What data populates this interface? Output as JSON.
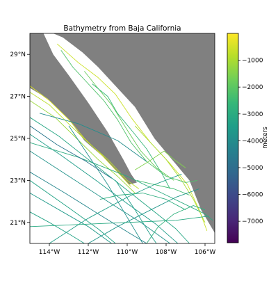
{
  "chart_data": {
    "type": "heatmap",
    "title": "Bathymetry from Baja California",
    "colorbar_label": "meters",
    "colormap": "viridis",
    "viridis_stops": [
      "#440154",
      "#482878",
      "#3e4989",
      "#31688e",
      "#26828e",
      "#1f9e89",
      "#35b779",
      "#6ece58",
      "#b5de2b",
      "#fde725"
    ],
    "land_color": "#808080",
    "ocean_color": "#ffffff",
    "value_range": [
      -7800,
      0
    ],
    "colorbar_ticks": [
      {
        "value": -1000,
        "label": "−1000"
      },
      {
        "value": -2000,
        "label": "−2000"
      },
      {
        "value": -3000,
        "label": "−3000"
      },
      {
        "value": -4000,
        "label": "−4000"
      },
      {
        "value": -5000,
        "label": "−5000"
      },
      {
        "value": -6000,
        "label": "−6000"
      },
      {
        "value": -7000,
        "label": "−7000"
      }
    ],
    "lon_range": [
      -115.0,
      -105.5
    ],
    "lat_range": [
      20.0,
      30.0
    ],
    "x_ticks": [
      {
        "value": -114,
        "label": "114°W"
      },
      {
        "value": -112,
        "label": "112°W"
      },
      {
        "value": -110,
        "label": "110°W"
      },
      {
        "value": -108,
        "label": "108°W"
      },
      {
        "value": -106,
        "label": "106°W"
      }
    ],
    "y_ticks": [
      {
        "value": 21,
        "label": "21°N"
      },
      {
        "value": 23,
        "label": "23°N"
      },
      {
        "value": 25,
        "label": "25°N"
      },
      {
        "value": 27,
        "label": "27°N"
      },
      {
        "value": 29,
        "label": "29°N"
      }
    ],
    "land_polygons": [
      {
        "name": "mainland-mexico",
        "points": [
          [
            -113.8,
            30.0
          ],
          [
            -105.5,
            30.0
          ],
          [
            -105.5,
            20.5
          ],
          [
            -106.2,
            21.6
          ],
          [
            -106.8,
            23.0
          ],
          [
            -107.7,
            24.0
          ],
          [
            -108.6,
            25.0
          ],
          [
            -109.6,
            26.5
          ],
          [
            -110.7,
            27.6
          ],
          [
            -111.5,
            28.4
          ],
          [
            -112.3,
            29.1
          ],
          [
            -113.3,
            29.8
          ]
        ]
      },
      {
        "name": "baja-peninsula",
        "points": [
          [
            -115.0,
            30.0
          ],
          [
            -114.3,
            30.0
          ],
          [
            -113.8,
            29.0
          ],
          [
            -113.0,
            28.0
          ],
          [
            -112.0,
            26.7
          ],
          [
            -111.0,
            25.3
          ],
          [
            -110.2,
            24.0
          ],
          [
            -109.8,
            23.3
          ],
          [
            -109.5,
            22.9
          ],
          [
            -109.9,
            22.8
          ],
          [
            -110.3,
            23.2
          ],
          [
            -111.2,
            24.1
          ],
          [
            -112.2,
            24.9
          ],
          [
            -113.0,
            25.9
          ],
          [
            -114.1,
            26.9
          ],
          [
            -115.0,
            27.4
          ]
        ]
      }
    ],
    "survey_tracks": [
      {
        "depth": -400,
        "points": [
          [
            -115.0,
            27.5
          ],
          [
            -114.0,
            26.8
          ],
          [
            -113.0,
            25.9
          ],
          [
            -112.2,
            25.0
          ],
          [
            -111.3,
            24.2
          ],
          [
            -110.4,
            23.3
          ],
          [
            -109.8,
            22.7
          ]
        ]
      },
      {
        "depth": -800,
        "points": [
          [
            -115.0,
            27.2
          ],
          [
            -114.0,
            26.6
          ],
          [
            -112.9,
            25.6
          ],
          [
            -112.0,
            24.8
          ],
          [
            -111.0,
            24.0
          ],
          [
            -110.0,
            23.0
          ],
          [
            -109.4,
            22.6
          ]
        ]
      },
      {
        "depth": -1200,
        "points": [
          [
            -115.0,
            26.8
          ],
          [
            -113.7,
            26.0
          ],
          [
            -112.6,
            25.0
          ],
          [
            -111.5,
            24.0
          ],
          [
            -110.5,
            23.2
          ],
          [
            -109.6,
            22.4
          ]
        ]
      },
      {
        "depth": -600,
        "points": [
          [
            -113.6,
            29.5
          ],
          [
            -112.5,
            28.6
          ],
          [
            -111.5,
            27.9
          ],
          [
            -110.6,
            27.1
          ],
          [
            -109.8,
            26.0
          ],
          [
            -108.8,
            24.8
          ],
          [
            -107.8,
            23.8
          ],
          [
            -106.9,
            22.8
          ],
          [
            -106.3,
            21.6
          ],
          [
            -105.9,
            20.6
          ]
        ]
      },
      {
        "depth": -1000,
        "points": [
          [
            -109.6,
            25.6
          ],
          [
            -108.9,
            24.9
          ],
          [
            -108.0,
            24.0
          ],
          [
            -107.2,
            23.0
          ],
          [
            -106.6,
            22.1
          ],
          [
            -106.0,
            21.0
          ]
        ]
      },
      {
        "depth": -2200,
        "points": [
          [
            -113.4,
            29.2
          ],
          [
            -112.8,
            28.4
          ],
          [
            -112.0,
            27.6
          ],
          [
            -111.2,
            26.8
          ],
          [
            -110.5,
            25.9
          ],
          [
            -109.8,
            24.8
          ],
          [
            -109.0,
            23.9
          ],
          [
            -108.0,
            23.2
          ],
          [
            -107.0,
            22.9
          ],
          [
            -106.4,
            23.0
          ]
        ]
      },
      {
        "depth": -1800,
        "points": [
          [
            -112.2,
            28.2
          ],
          [
            -111.6,
            27.5
          ],
          [
            -110.8,
            26.6
          ],
          [
            -110.0,
            25.4
          ],
          [
            -109.3,
            24.4
          ],
          [
            -108.5,
            23.6
          ],
          [
            -107.6,
            23.0
          ]
        ]
      },
      {
        "depth": -2600,
        "points": [
          [
            -111.8,
            27.6
          ],
          [
            -111.0,
            27.0
          ],
          [
            -110.5,
            26.2
          ],
          [
            -109.7,
            25.3
          ],
          [
            -109.0,
            24.5
          ],
          [
            -108.2,
            23.3
          ],
          [
            -107.8,
            22.6
          ]
        ]
      },
      {
        "depth": -2400,
        "points": [
          [
            -109.5,
            23.0
          ],
          [
            -108.6,
            22.8
          ],
          [
            -107.6,
            22.6
          ],
          [
            -106.8,
            22.3
          ]
        ]
      },
      {
        "depth": -1500,
        "points": [
          [
            -109.6,
            23.5
          ],
          [
            -108.9,
            23.9
          ],
          [
            -108.1,
            24.4
          ],
          [
            -107.6,
            24.0
          ],
          [
            -107.0,
            23.6
          ]
        ]
      },
      {
        "depth": -3200,
        "points": [
          [
            -115.0,
            26.0
          ],
          [
            -113.5,
            25.1
          ],
          [
            -112.0,
            24.0
          ],
          [
            -110.5,
            22.9
          ],
          [
            -109.0,
            21.8
          ],
          [
            -107.5,
            20.7
          ],
          [
            -106.8,
            20.0
          ]
        ]
      },
      {
        "depth": -3500,
        "points": [
          [
            -115.0,
            25.2
          ],
          [
            -113.4,
            24.2
          ],
          [
            -111.6,
            23.0
          ],
          [
            -110.0,
            21.9
          ],
          [
            -108.5,
            20.9
          ],
          [
            -107.4,
            20.0
          ]
        ]
      },
      {
        "depth": -3800,
        "points": [
          [
            -115.0,
            24.4
          ],
          [
            -113.0,
            23.2
          ],
          [
            -111.0,
            22.0
          ],
          [
            -109.3,
            21.0
          ],
          [
            -107.8,
            20.0
          ]
        ]
      },
      {
        "depth": -4200,
        "points": [
          [
            -115.0,
            23.4
          ],
          [
            -113.2,
            22.4
          ],
          [
            -111.3,
            21.3
          ],
          [
            -109.9,
            20.5
          ],
          [
            -109.0,
            20.0
          ]
        ]
      },
      {
        "depth": -3600,
        "points": [
          [
            -115.0,
            22.4
          ],
          [
            -113.5,
            21.6
          ],
          [
            -112.0,
            20.8
          ],
          [
            -110.8,
            20.0
          ]
        ]
      },
      {
        "depth": -3300,
        "points": [
          [
            -115.0,
            21.5
          ],
          [
            -114.0,
            21.0
          ],
          [
            -112.9,
            20.4
          ],
          [
            -112.2,
            20.0
          ]
        ]
      },
      {
        "depth": -3400,
        "points": [
          [
            -114.0,
            20.0
          ],
          [
            -112.0,
            21.2
          ],
          [
            -110.0,
            22.2
          ],
          [
            -108.6,
            22.8
          ],
          [
            -107.2,
            23.3
          ]
        ]
      },
      {
        "depth": -3700,
        "points": [
          [
            -112.0,
            20.0
          ],
          [
            -110.5,
            20.8
          ],
          [
            -109.0,
            21.5
          ],
          [
            -107.5,
            22.2
          ],
          [
            -106.3,
            22.6
          ]
        ]
      },
      {
        "depth": -3000,
        "points": [
          [
            -115.0,
            24.8
          ],
          [
            -112.5,
            24.1
          ],
          [
            -110.0,
            23.2
          ],
          [
            -108.0,
            22.3
          ],
          [
            -106.0,
            21.4
          ],
          [
            -105.6,
            21.1
          ]
        ]
      },
      {
        "depth": -3900,
        "points": [
          [
            -113.0,
            25.6
          ],
          [
            -112.0,
            24.2
          ],
          [
            -111.0,
            22.8
          ],
          [
            -110.1,
            21.4
          ],
          [
            -109.2,
            20.0
          ]
        ]
      },
      {
        "depth": -3500,
        "points": [
          [
            -110.6,
            23.0
          ],
          [
            -109.6,
            21.6
          ],
          [
            -108.8,
            20.4
          ],
          [
            -108.5,
            20.0
          ]
        ]
      },
      {
        "depth": -4000,
        "points": [
          [
            -114.5,
            26.2
          ],
          [
            -112.5,
            25.7
          ],
          [
            -110.5,
            24.9
          ],
          [
            -109.0,
            23.9
          ]
        ]
      },
      {
        "depth": -3100,
        "points": [
          [
            -115.0,
            20.8
          ],
          [
            -112.5,
            20.9
          ],
          [
            -110.0,
            21.0
          ],
          [
            -107.5,
            21.1
          ],
          [
            -105.8,
            21.3
          ]
        ]
      },
      {
        "depth": -4700,
        "points": [
          [
            -115.0,
            25.6
          ],
          [
            -113.6,
            24.7
          ],
          [
            -112.1,
            23.9
          ],
          [
            -110.8,
            23.1
          ]
        ]
      },
      {
        "depth": -2800,
        "points": [
          [
            -109.0,
            20.0
          ],
          [
            -108.4,
            20.8
          ],
          [
            -107.6,
            21.4
          ],
          [
            -106.6,
            21.8
          ],
          [
            -106.0,
            21.6
          ]
        ]
      },
      {
        "depth": -3300,
        "points": [
          [
            -115.0,
            23.0
          ],
          [
            -113.0,
            21.7
          ],
          [
            -111.5,
            20.7
          ],
          [
            -110.6,
            20.0
          ]
        ]
      },
      {
        "depth": -2900,
        "points": [
          [
            -111.4,
            22.1
          ],
          [
            -110.4,
            22.3
          ],
          [
            -109.2,
            22.4
          ],
          [
            -108.0,
            22.1
          ],
          [
            -107.0,
            21.6
          ]
        ]
      }
    ]
  }
}
